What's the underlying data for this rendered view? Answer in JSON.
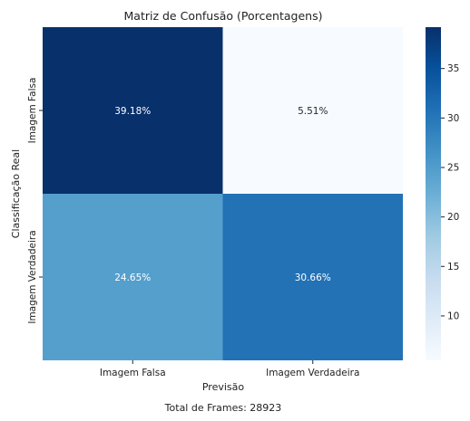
{
  "chart_data": {
    "type": "heatmap",
    "title": "Matriz de Confusão (Porcentagens)",
    "xlabel": "Previsão",
    "ylabel": "Classificação Real",
    "x_categories": [
      "Imagem Falsa",
      "Imagem Verdadeira"
    ],
    "y_categories": [
      "Imagem Falsa",
      "Imagem Verdadeira"
    ],
    "values": [
      [
        39.18,
        5.51
      ],
      [
        24.65,
        30.66
      ]
    ],
    "cell_labels": [
      [
        "39.18%",
        "5.51%"
      ],
      [
        "24.65%",
        "30.66%"
      ]
    ],
    "colormap": "Blues",
    "colorbar": {
      "range": [
        5.51,
        39.18
      ],
      "ticks": [
        10,
        15,
        20,
        25,
        30,
        35
      ]
    },
    "footer": "Total de Frames: 28923"
  }
}
